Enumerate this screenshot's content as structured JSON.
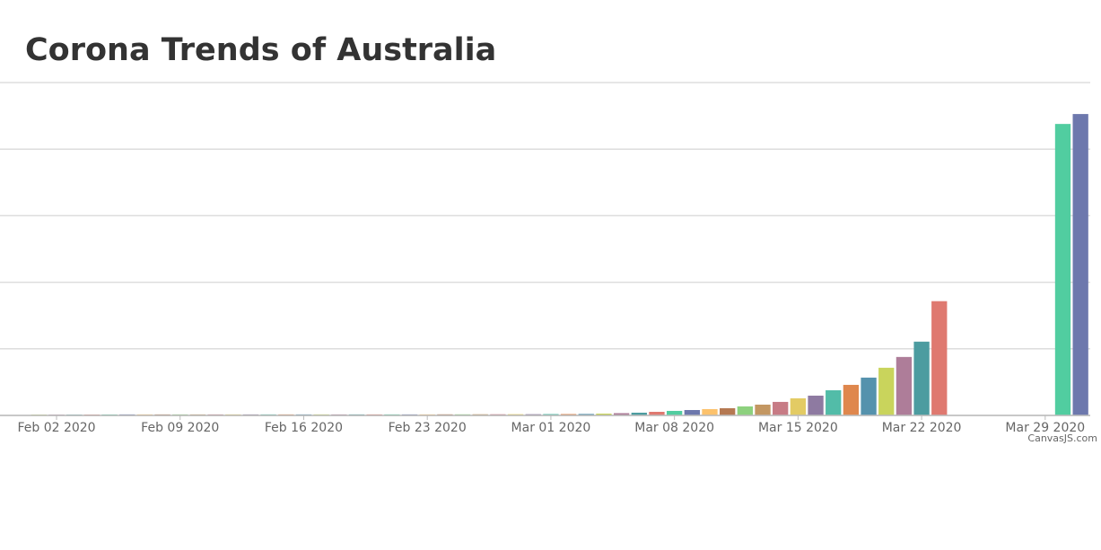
{
  "chart_data": {
    "type": "bar",
    "title": "Corona Trends of Australia",
    "credit": "CanvasJS.com",
    "x": [
      "2020-03-31",
      "2020-03-30",
      "2020-03-23",
      "2020-03-22",
      "2020-03-21",
      "2020-03-20",
      "2020-03-19",
      "2020-03-18",
      "2020-03-17",
      "2020-03-16",
      "2020-03-15",
      "2020-03-14",
      "2020-03-13",
      "2020-03-12",
      "2020-03-11",
      "2020-03-10",
      "2020-03-09",
      "2020-03-08",
      "2020-03-07",
      "2020-03-06",
      "2020-03-05",
      "2020-03-04",
      "2020-03-03",
      "2020-03-02",
      "2020-03-01",
      "2020-02-29",
      "2020-02-28",
      "2020-02-27",
      "2020-02-26",
      "2020-02-25",
      "2020-02-24",
      "2020-02-23",
      "2020-02-22",
      "2020-02-21",
      "2020-02-20",
      "2020-02-19",
      "2020-02-18",
      "2020-02-17",
      "2020-02-16",
      "2020-02-15",
      "2020-02-14",
      "2020-02-13",
      "2020-02-12",
      "2020-02-11",
      "2020-02-10",
      "2020-02-09",
      "2020-02-08",
      "2020-02-07",
      "2020-02-06",
      "2020-02-05",
      "2020-02-04",
      "2020-02-03",
      "2020-02-02",
      "2020-02-01"
    ],
    "values": [
      4527,
      4378,
      1716,
      1108,
      878,
      716,
      568,
      459,
      378,
      297,
      257,
      203,
      162,
      135,
      108,
      95,
      81,
      68,
      54,
      41,
      34,
      27,
      22,
      20,
      20,
      18,
      18,
      17,
      17,
      16,
      16,
      15,
      15,
      15,
      15,
      15,
      15,
      15,
      15,
      15,
      15,
      15,
      15,
      15,
      15,
      15,
      15,
      15,
      15,
      14,
      13,
      12,
      12,
      12
    ],
    "colors": [
      "#6D78AD",
      "#51CDA0",
      "#DF7970",
      "#4C9CA0",
      "#AE7D99",
      "#C9D45C",
      "#5592AD",
      "#DF874D",
      "#52BCA8",
      "#8E7AA1",
      "#E3CB64",
      "#C77B85",
      "#C39762",
      "#8DD17E",
      "#B57952",
      "#FCC26C"
    ],
    "xlim": [
      "2020-01-30T00:00:00Z",
      "2020-03-31T12:00:00Z"
    ],
    "xticks": [
      {
        "value": "2020-02-02",
        "label": "Feb 02 2020"
      },
      {
        "value": "2020-02-09",
        "label": "Feb 09 2020"
      },
      {
        "value": "2020-02-16",
        "label": "Feb 16 2020"
      },
      {
        "value": "2020-02-23",
        "label": "Feb 23 2020"
      },
      {
        "value": "2020-03-01",
        "label": "Mar 01 2020"
      },
      {
        "value": "2020-03-08",
        "label": "Mar 08 2020"
      },
      {
        "value": "2020-03-15",
        "label": "Mar 15 2020"
      },
      {
        "value": "2020-03-22",
        "label": "Mar 22 2020"
      },
      {
        "value": "2020-03-29",
        "label": "Mar 29 2020"
      }
    ],
    "ylim": [
      0,
      5000
    ],
    "yticks": [
      0,
      1000,
      2000,
      3000,
      4000,
      5000
    ],
    "grid": true,
    "y_tick_labels": false
  }
}
